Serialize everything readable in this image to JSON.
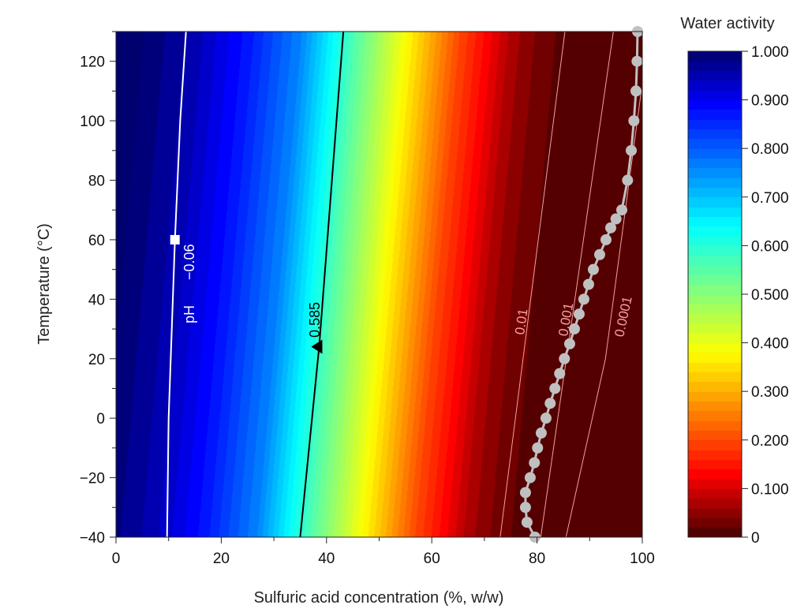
{
  "chart_data": {
    "type": "heatmap",
    "title": "",
    "xlabel": "Sulfuric acid concentration (%, w/w)",
    "ylabel": "Temperature (°C)",
    "xlim": [
      0,
      100
    ],
    "ylim": [
      -40,
      130
    ],
    "x_ticks": [
      "0",
      "20",
      "40",
      "60",
      "80",
      "100"
    ],
    "y_ticks": [
      "−40",
      "−20",
      "0",
      "20",
      "40",
      "60",
      "80",
      "100",
      "120"
    ],
    "x_tick_values": [
      0,
      20,
      40,
      60,
      80,
      100
    ],
    "y_tick_values": [
      -40,
      -20,
      0,
      20,
      40,
      60,
      80,
      100,
      120
    ],
    "colorbar": {
      "title": "Water activity",
      "range": [
        0,
        1
      ],
      "tick_labels": [
        "0",
        "0.100",
        "0.200",
        "0.300",
        "0.400",
        "0.500",
        "0.600",
        "0.700",
        "0.800",
        "0.900",
        "1.000"
      ],
      "tick_values": [
        0,
        0.1,
        0.2,
        0.3,
        0.4,
        0.5,
        0.6,
        0.7,
        0.8,
        0.9,
        1.0
      ],
      "band_step": 0.02,
      "colormap": "jet-reversed"
    },
    "water_activity_model": {
      "reference_temperature": 25,
      "shift_per_degree": 0.05,
      "concentration": [
        0,
        10,
        20,
        30,
        40,
        50,
        60,
        70,
        75,
        80,
        90,
        100
      ],
      "aw": [
        1,
        0.95,
        0.87,
        0.76,
        0.56,
        0.38,
        0.2,
        0.07,
        0.035,
        0.012,
        0.0008,
        0
      ]
    },
    "contours": [
      {
        "label": "pH",
        "value_label": "−0.06",
        "color": "#ffffff",
        "points": [
          [
            9.7,
            -40
          ],
          [
            10.0,
            0
          ],
          [
            11.2,
            60
          ],
          [
            12.2,
            100
          ],
          [
            13.3,
            130
          ]
        ]
      },
      {
        "label": "0.585",
        "color": "#000000",
        "points": [
          [
            35.0,
            -40
          ],
          [
            38.6,
            24
          ],
          [
            43.2,
            130
          ]
        ]
      },
      {
        "label": "0.01",
        "color": "#f4a0a0",
        "points": [
          [
            73.0,
            -40
          ],
          [
            85.3,
            130
          ]
        ]
      },
      {
        "label": "0.001",
        "color": "#f4a0a0",
        "points": [
          [
            80.7,
            -40
          ],
          [
            94.5,
            130
          ]
        ]
      },
      {
        "label": "0.0001",
        "color": "#f4a0a0",
        "points": [
          [
            85.5,
            -40
          ],
          [
            93,
            20
          ],
          [
            99.8,
            110
          ]
        ]
      }
    ],
    "markers": [
      {
        "type": "square",
        "color": "#ffffff",
        "x": 11.2,
        "y": 60
      },
      {
        "type": "triangle",
        "color": "#000000",
        "x": 38.6,
        "y": 24
      }
    ],
    "series": [
      {
        "name": "gray-dots",
        "color": "#c0c0c0",
        "x": [
          79.6,
          78.1,
          77.8,
          77.8,
          78.7,
          79.5,
          80.1,
          80.8,
          81.7,
          82.5,
          83.4,
          84.3,
          85.2,
          86.2,
          87.1,
          88.0,
          88.9,
          89.8,
          90.7,
          91.9,
          93.1,
          94.0,
          95.0,
          96.1,
          97.2,
          97.9,
          98.4,
          98.8,
          99.0,
          99.1
        ],
        "y": [
          -40,
          -35,
          -30,
          -25,
          -20,
          -15,
          -10,
          -5,
          0,
          5,
          10,
          15,
          20,
          25,
          30,
          35,
          40,
          45,
          50,
          55,
          60,
          64,
          67,
          70,
          80,
          90,
          100,
          110,
          120,
          130
        ]
      }
    ],
    "grid": false,
    "legend": "right"
  }
}
